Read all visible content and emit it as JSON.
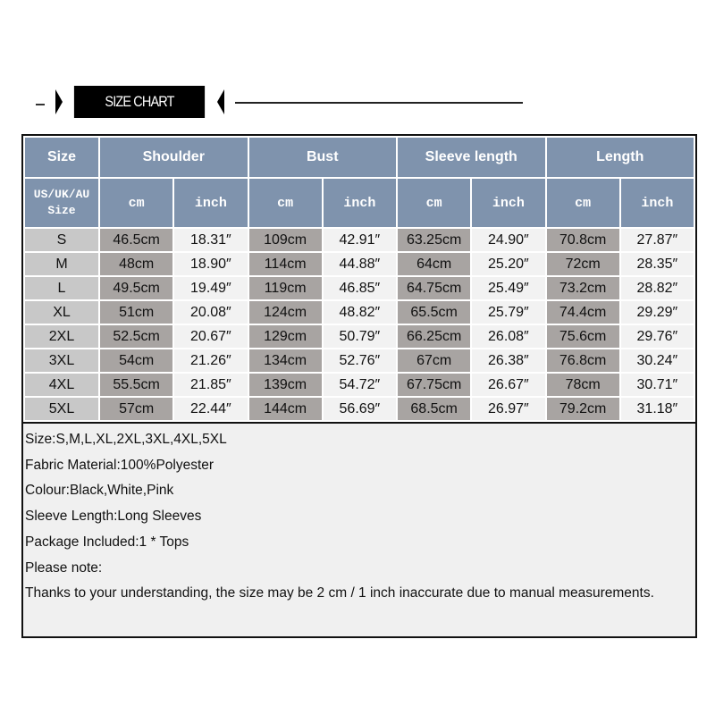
{
  "title": "SIZE CHART",
  "header": {
    "size": "Size",
    "groups": [
      "Shoulder",
      "Bust",
      "Sleeve length",
      "Length"
    ],
    "size_sub": "US/UK/AU Size",
    "unit_cm": "cm",
    "unit_inch": "inch"
  },
  "rows": [
    {
      "size": "S",
      "values": [
        "46.5cm",
        "18.31″",
        "109cm",
        "42.91″",
        "63.25cm",
        "24.90″",
        "70.8cm",
        "27.87″"
      ]
    },
    {
      "size": "M",
      "values": [
        "48cm",
        "18.90″",
        "114cm",
        "44.88″",
        "64cm",
        "25.20″",
        "72cm",
        "28.35″"
      ]
    },
    {
      "size": "L",
      "values": [
        "49.5cm",
        "19.49″",
        "119cm",
        "46.85″",
        "64.75cm",
        "25.49″",
        "73.2cm",
        "28.82″"
      ]
    },
    {
      "size": "XL",
      "values": [
        "51cm",
        "20.08″",
        "124cm",
        "48.82″",
        "65.5cm",
        "25.79″",
        "74.4cm",
        "29.29″"
      ]
    },
    {
      "size": "2XL",
      "values": [
        "52.5cm",
        "20.67″",
        "129cm",
        "50.79″",
        "66.25cm",
        "26.08″",
        "75.6cm",
        "29.76″"
      ]
    },
    {
      "size": "3XL",
      "values": [
        "54cm",
        "21.26″",
        "134cm",
        "52.76″",
        "67cm",
        "26.38″",
        "76.8cm",
        "30.24″"
      ]
    },
    {
      "size": "4XL",
      "values": [
        "55.5cm",
        "21.85″",
        "139cm",
        "54.72″",
        "67.75cm",
        "26.67″",
        "78cm",
        "30.71″"
      ]
    },
    {
      "size": "5XL",
      "values": [
        "57cm",
        "22.44″",
        "144cm",
        "56.69″",
        "68.5cm",
        "26.97″",
        "79.2cm",
        "31.18″"
      ]
    }
  ],
  "notes": [
    "Size:S,M,L,XL,2XL,3XL,4XL,5XL",
    "Fabric Material:100%Polyester",
    "Colour:Black,White,Pink",
    "Sleeve Length:Long Sleeves",
    "Package Included:1 * Tops",
    "Please note:",
    "Thanks to your understanding, the size may be 2 cm / 1 inch inaccurate due to manual measurements."
  ],
  "colors": {
    "header": "#7f93ad",
    "size_col": "#c8c8c8",
    "cm_col": "#a8a4a2",
    "inch_col": "#f2f2f2"
  }
}
